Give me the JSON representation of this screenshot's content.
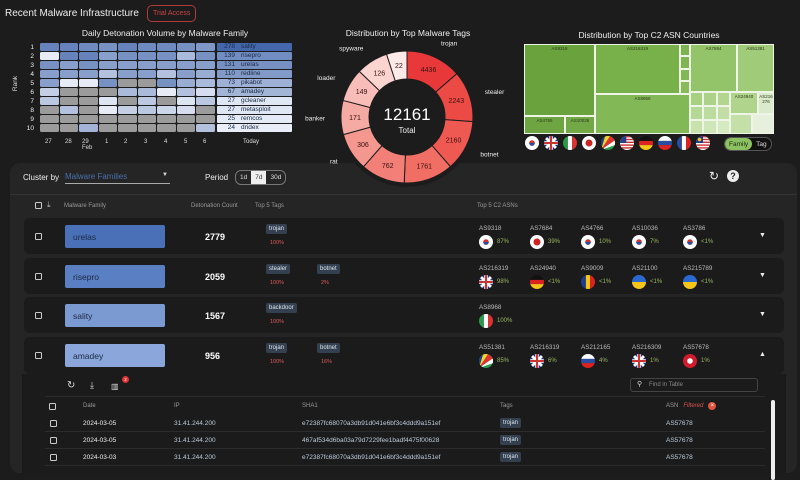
{
  "header": {
    "title": "Recent Malware Infrastructure",
    "trial_button": "Trial Access"
  },
  "chart_data": [
    {
      "type": "heatmap",
      "title": "Daily Detonation Volume by Malware Family",
      "ylabel": "Rank",
      "ranks": [
        "1",
        "2",
        "3",
        "4",
        "5",
        "6",
        "7",
        "8",
        "9",
        "10"
      ],
      "x_ticks": [
        "27",
        "28",
        "29 Feb",
        "1",
        "2",
        "3",
        "4",
        "5",
        "6"
      ],
      "today_label": "Today",
      "today": [
        {
          "count": "278",
          "family": "sality"
        },
        {
          "count": "139",
          "family": "risepro"
        },
        {
          "count": "131",
          "family": "urelas"
        },
        {
          "count": "110",
          "family": "redline"
        },
        {
          "count": "73",
          "family": "pikabot"
        },
        {
          "count": "67",
          "family": "amadey"
        },
        {
          "count": "27",
          "family": "gcleaner"
        },
        {
          "count": "27",
          "family": "metasploit"
        },
        {
          "count": "25",
          "family": "remcos"
        },
        {
          "count": "24",
          "family": "dridex"
        }
      ],
      "intensity": [
        [
          0.8,
          0.8,
          0.75,
          0.7,
          0.8,
          0.75,
          0.75,
          0.7,
          0.65
        ],
        [
          0.05,
          0.8,
          0.8,
          0.6,
          0.7,
          0.7,
          0.7,
          0.4,
          0.7
        ],
        [
          0.7,
          0.6,
          0.7,
          0.6,
          0.6,
          0.6,
          0.6,
          0.6,
          0.6
        ],
        [
          0.6,
          0.6,
          0.6,
          0.35,
          0.6,
          0.6,
          0.35,
          0.6,
          0.5
        ],
        [
          0.6,
          0.05,
          0.05,
          0.7,
          null,
          null,
          0.7,
          0.5,
          0.4
        ],
        [
          0.25,
          null,
          null,
          null,
          0.4,
          0.4,
          0.05,
          0.35,
          0.15
        ],
        [
          0.3,
          null,
          null,
          0.1,
          null,
          0.3,
          null,
          0.1,
          0.3
        ],
        [
          null,
          0.35,
          null,
          0.05,
          0.25,
          0.3,
          0.2,
          0.15,
          null
        ],
        [
          null,
          null,
          null,
          null,
          null,
          null,
          null,
          null,
          null
        ],
        [
          null,
          null,
          0.45,
          null,
          null,
          null,
          null,
          null,
          0.35
        ]
      ],
      "colors": {
        "high": "#4467ab",
        "low": "#eef2fa",
        "none": "#9b9b9b"
      }
    },
    {
      "type": "pie",
      "title": "Distribution by Top Malware Tags",
      "center_value": "12161",
      "center_label": "Total",
      "slices": [
        {
          "label": "trojan",
          "value": 4436
        },
        {
          "label": "stealer",
          "value": 2243
        },
        {
          "label": "botnet",
          "value": 2160
        },
        {
          "label": "",
          "value": 1761
        },
        {
          "label": "",
          "value": 762
        },
        {
          "label": "rat",
          "value": 306
        },
        {
          "label": "banker",
          "value": 171
        },
        {
          "label": "loader",
          "value": 149
        },
        {
          "label": "spyware",
          "value": 126
        },
        {
          "label": "",
          "value": 22
        }
      ],
      "colors": [
        "#e8383a",
        "#ec4a45",
        "#ee5a52",
        "#f06e64",
        "#f28078",
        "#f4978f",
        "#f6aaa4",
        "#f8bdb8",
        "#fbd3cf",
        "#fde9e7"
      ]
    },
    {
      "type": "treemap",
      "title": "Distribution by Top C2 ASN Countries",
      "labels": [
        "AS9318",
        "AS4766",
        "AS10036",
        "AS216319",
        "AS8968",
        "AS7684",
        "AS51381",
        "AS24940",
        "AS216276"
      ]
    }
  ],
  "countries": [
    "kr",
    "gb",
    "it",
    "jp",
    "sc",
    "us",
    "de",
    "ru",
    "fr",
    "my"
  ],
  "toggle": {
    "options": [
      "Family",
      "Tag"
    ],
    "active": "Family"
  },
  "controls": {
    "cluster_label": "Cluster by",
    "cluster_value": "Malware Families",
    "period_label": "Period",
    "periods": [
      "1d",
      "7d",
      "30d"
    ],
    "active_period": "7d"
  },
  "table": {
    "headers": {
      "family": "Malware Family",
      "count": "Detonation Count",
      "tags": "Top 5 Tags",
      "asns": "Top 5 C2 ASNs"
    },
    "rows": [
      {
        "family": "urelas",
        "color": "#4a70b8",
        "count": "2779",
        "tags": [
          {
            "name": "trojan",
            "pct": "100%"
          }
        ],
        "asns": [
          {
            "asn": "AS9318",
            "cc": "kr",
            "pct": "87%"
          },
          {
            "asn": "AS7684",
            "cc": "jp",
            "pct": "39%"
          },
          {
            "asn": "AS4766",
            "cc": "kr",
            "pct": "10%"
          },
          {
            "asn": "AS10036",
            "cc": "kr",
            "pct": "7%"
          },
          {
            "asn": "AS3786",
            "cc": "kr",
            "pct": "<1%"
          }
        ],
        "expanded": false
      },
      {
        "family": "risepro",
        "color": "#5a7fc2",
        "count": "2059",
        "tags": [
          {
            "name": "stealer",
            "pct": "100%"
          },
          {
            "name": "botnet",
            "pct": "2%"
          }
        ],
        "asns": [
          {
            "asn": "AS216319",
            "cc": "gb",
            "pct": "98%"
          },
          {
            "asn": "AS24940",
            "cc": "de",
            "pct": "<1%"
          },
          {
            "asn": "AS9009",
            "cc": "ro",
            "pct": "<1%"
          },
          {
            "asn": "AS21100",
            "cc": "ua",
            "pct": "<1%"
          },
          {
            "asn": "AS215789",
            "cc": "ua",
            "pct": "<1%"
          }
        ],
        "expanded": false
      },
      {
        "family": "sality",
        "color": "#7c9ad2",
        "count": "1567",
        "tags": [
          {
            "name": "backdoor",
            "pct": "100%"
          }
        ],
        "asns": [
          {
            "asn": "AS8968",
            "cc": "it",
            "pct": "100%"
          }
        ],
        "expanded": false
      },
      {
        "family": "amadey",
        "color": "#8aa6da",
        "count": "956",
        "tags": [
          {
            "name": "trojan",
            "pct": "100%"
          },
          {
            "name": "botnet",
            "pct": "16%"
          }
        ],
        "asns": [
          {
            "asn": "AS51381",
            "cc": "sc",
            "pct": "85%"
          },
          {
            "asn": "AS216319",
            "cc": "gb",
            "pct": "6%"
          },
          {
            "asn": "AS212165",
            "cc": "ru",
            "pct": "4%"
          },
          {
            "asn": "AS216309",
            "cc": "gb",
            "pct": "1%"
          },
          {
            "asn": "AS57678",
            "cc": "hk",
            "pct": "1%"
          }
        ],
        "expanded": true
      }
    ]
  },
  "detail": {
    "filter_badge": "2",
    "search_placeholder": "Find in Table",
    "filtered_label": "Filtered",
    "headers": {
      "date": "Date",
      "ip": "IP",
      "sha1": "SHA1",
      "tags": "Tags",
      "asn": "ASN"
    },
    "rows": [
      {
        "date": "2024-03-05",
        "ip": "31.41.244.200",
        "sha1": "e72387fc68070a3db91d041e6bf3c4ddd9a151ef",
        "tag": "trojan",
        "asn": "AS57678"
      },
      {
        "date": "2024-03-05",
        "ip": "31.41.244.200",
        "sha1": "467af534d6ba03a79d7229fee1badf4475f00628",
        "tag": "trojan",
        "asn": "AS57678"
      },
      {
        "date": "2024-03-03",
        "ip": "31.41.244.200",
        "sha1": "e72387fc68070a3db91d041e6bf3c4ddd9a151ef",
        "tag": "trojan",
        "asn": "AS57678"
      }
    ]
  }
}
